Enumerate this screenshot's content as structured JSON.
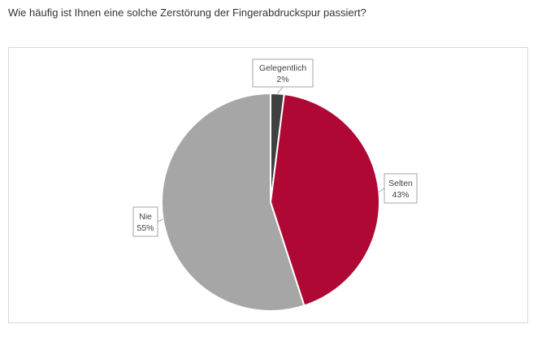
{
  "question": "Wie häufig ist Ihnen eine solche Zerstörung der Fingerabdruckspur passiert?",
  "chart_data": {
    "type": "pie",
    "title": "Wie häufig ist Ihnen eine solche Zerstörung der Fingerabdruckspur passiert?",
    "categories": [
      "Gelegentlich",
      "Selten",
      "Nie"
    ],
    "values": [
      2,
      43,
      55
    ],
    "value_labels": [
      "2%",
      "43%",
      "55%"
    ],
    "colors": [
      "#404040",
      "#b00834",
      "#a6a6a6"
    ],
    "legend": "none"
  }
}
